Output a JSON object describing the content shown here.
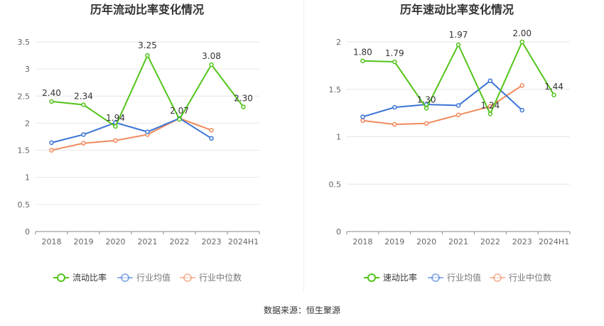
{
  "source": "数据来源：恒生聚源",
  "colors": {
    "green": "#52c41a",
    "blue": "#3b74d6",
    "orange": "#f08a5d",
    "grid": "#e6e6e6",
    "axis": "#666666"
  },
  "chart_data": [
    {
      "type": "line",
      "title": "历年流动比率变化情况",
      "categories": [
        "2018",
        "2019",
        "2020",
        "2021",
        "2022",
        "2023",
        "2024H1"
      ],
      "ylim": [
        0,
        3.5
      ],
      "yticks": [
        "0",
        "0.5",
        "1",
        "1.5",
        "2",
        "2.5",
        "3",
        "3.5"
      ],
      "grid": true,
      "legend_position": "bottom",
      "series": [
        {
          "name": "流动比率",
          "color": "#52c41a",
          "values": [
            2.4,
            2.34,
            1.94,
            3.25,
            2.07,
            3.08,
            2.3
          ],
          "labels": [
            "2.40",
            "2.34",
            "1.94",
            "3.25",
            "2.07",
            "3.08",
            "2.30"
          ]
        },
        {
          "name": "行业均值",
          "color": "#3b74d6",
          "values": [
            1.64,
            1.79,
            2.01,
            1.84,
            2.09,
            1.72,
            null
          ]
        },
        {
          "name": "行业中位数",
          "color": "#f08a5d",
          "values": [
            1.5,
            1.63,
            1.68,
            1.79,
            2.09,
            1.87,
            null
          ]
        }
      ]
    },
    {
      "type": "line",
      "title": "历年速动比率变化情况",
      "categories": [
        "2018",
        "2019",
        "2020",
        "2021",
        "2022",
        "2023",
        "2024H1"
      ],
      "ylim": [
        0,
        2
      ],
      "yticks": [
        "0",
        "0.5",
        "1",
        "1.5",
        "2"
      ],
      "grid": true,
      "legend_position": "bottom",
      "series": [
        {
          "name": "速动比率",
          "color": "#52c41a",
          "values": [
            1.8,
            1.79,
            1.3,
            1.97,
            1.24,
            2.0,
            1.44
          ],
          "labels": [
            "1.80",
            "1.79",
            "1.30",
            "1.97",
            "1.24",
            "2.00",
            "1.44"
          ]
        },
        {
          "name": "行业均值",
          "color": "#3b74d6",
          "values": [
            1.21,
            1.31,
            1.34,
            1.33,
            1.59,
            1.28,
            null
          ]
        },
        {
          "name": "行业中位数",
          "color": "#f08a5d",
          "values": [
            1.17,
            1.13,
            1.14,
            1.23,
            1.32,
            1.54,
            null
          ]
        }
      ]
    }
  ]
}
